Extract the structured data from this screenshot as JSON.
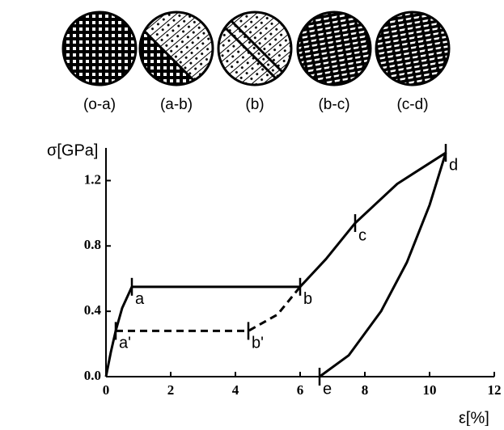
{
  "panels": [
    "(o-a)",
    "(a-b)",
    "(b)",
    "(b-c)",
    "(c-d)"
  ],
  "chart_data": {
    "type": "line",
    "y_label": "σ[GPa]",
    "x_label": "ε[%]",
    "xlim": [
      0,
      12
    ],
    "xticks": [
      0,
      2,
      4,
      6,
      8,
      10,
      12
    ],
    "ylim": [
      0,
      1.4
    ],
    "yticks": [
      {
        "value": 0,
        "label": "0.0"
      },
      0.4,
      0.8,
      1.2
    ],
    "series": [
      {
        "color": "#000000",
        "dash": false,
        "x": [
          0,
          0.15,
          0.3,
          0.5,
          0.8,
          6,
          6.8,
          7.7,
          9,
          10.5
        ],
        "values": [
          0,
          0.15,
          0.28,
          0.42,
          0.55,
          0.55,
          0.72,
          0.94,
          1.18,
          1.37
        ],
        "point_labels": [
          null,
          null,
          null,
          null,
          "a",
          "b",
          null,
          "c",
          null,
          "d"
        ]
      },
      {
        "color": "#000000",
        "dash": true,
        "x": [
          0.3,
          4.4,
          5.3,
          6
        ],
        "values": [
          0.28,
          0.28,
          0.38,
          0.55
        ],
        "point_labels": [
          "a'",
          "b'",
          null,
          null
        ]
      },
      {
        "color": "#000000",
        "dash": false,
        "x": [
          10.5,
          10,
          9.3,
          8.5,
          7.5,
          6.6
        ],
        "values": [
          1.37,
          1.05,
          0.7,
          0.4,
          0.13,
          0
        ],
        "point_labels": [
          null,
          null,
          null,
          null,
          null,
          "e"
        ]
      }
    ]
  }
}
